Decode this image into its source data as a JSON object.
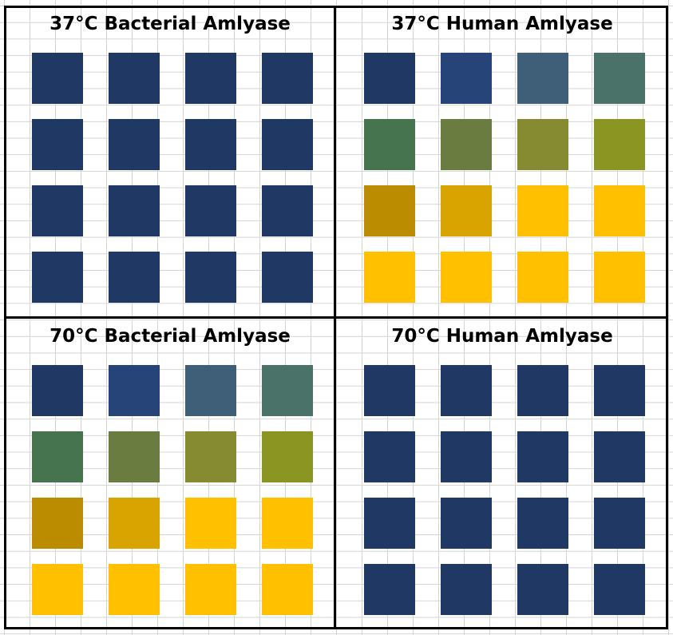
{
  "panels": [
    {
      "title": "37°C Bacterial Amlyase",
      "colors": [
        [
          "#1f3864",
          "#1f3864",
          "#1f3864",
          "#1f3864"
        ],
        [
          "#1f3864",
          "#1f3864",
          "#1f3864",
          "#1f3864"
        ],
        [
          "#1f3864",
          "#1f3864",
          "#1f3864",
          "#1f3864"
        ],
        [
          "#1f3864",
          "#1f3864",
          "#1f3864",
          "#1f3864"
        ]
      ]
    },
    {
      "title": "37°C Human Amlyase",
      "colors": [
        [
          "#1f3864",
          "#264478",
          "#3f5e78",
          "#4a7268"
        ],
        [
          "#46744e",
          "#6b7c40",
          "#868a30",
          "#8b9622"
        ],
        [
          "#bb8b00",
          "#d9a400",
          "#ffc000",
          "#ffc000"
        ],
        [
          "#ffc000",
          "#ffc000",
          "#ffc000",
          "#ffc000"
        ]
      ]
    },
    {
      "title": "70°C Bacterial Amlyase",
      "colors": [
        [
          "#1f3864",
          "#264478",
          "#3f5e78",
          "#4a7268"
        ],
        [
          "#46744e",
          "#6b7c40",
          "#868a30",
          "#8b9622"
        ],
        [
          "#bb8b00",
          "#d9a400",
          "#ffc000",
          "#ffc000"
        ],
        [
          "#ffc000",
          "#ffc000",
          "#ffc000",
          "#ffc000"
        ]
      ]
    },
    {
      "title": "70°C Human Amlyase",
      "colors": [
        [
          "#1f3864",
          "#1f3864",
          "#1f3864",
          "#1f3864"
        ],
        [
          "#1f3864",
          "#1f3864",
          "#1f3864",
          "#1f3864"
        ],
        [
          "#1f3864",
          "#1f3864",
          "#1f3864",
          "#1f3864"
        ],
        [
          "#1f3864",
          "#1f3864",
          "#1f3864",
          "#1f3864"
        ]
      ]
    }
  ]
}
